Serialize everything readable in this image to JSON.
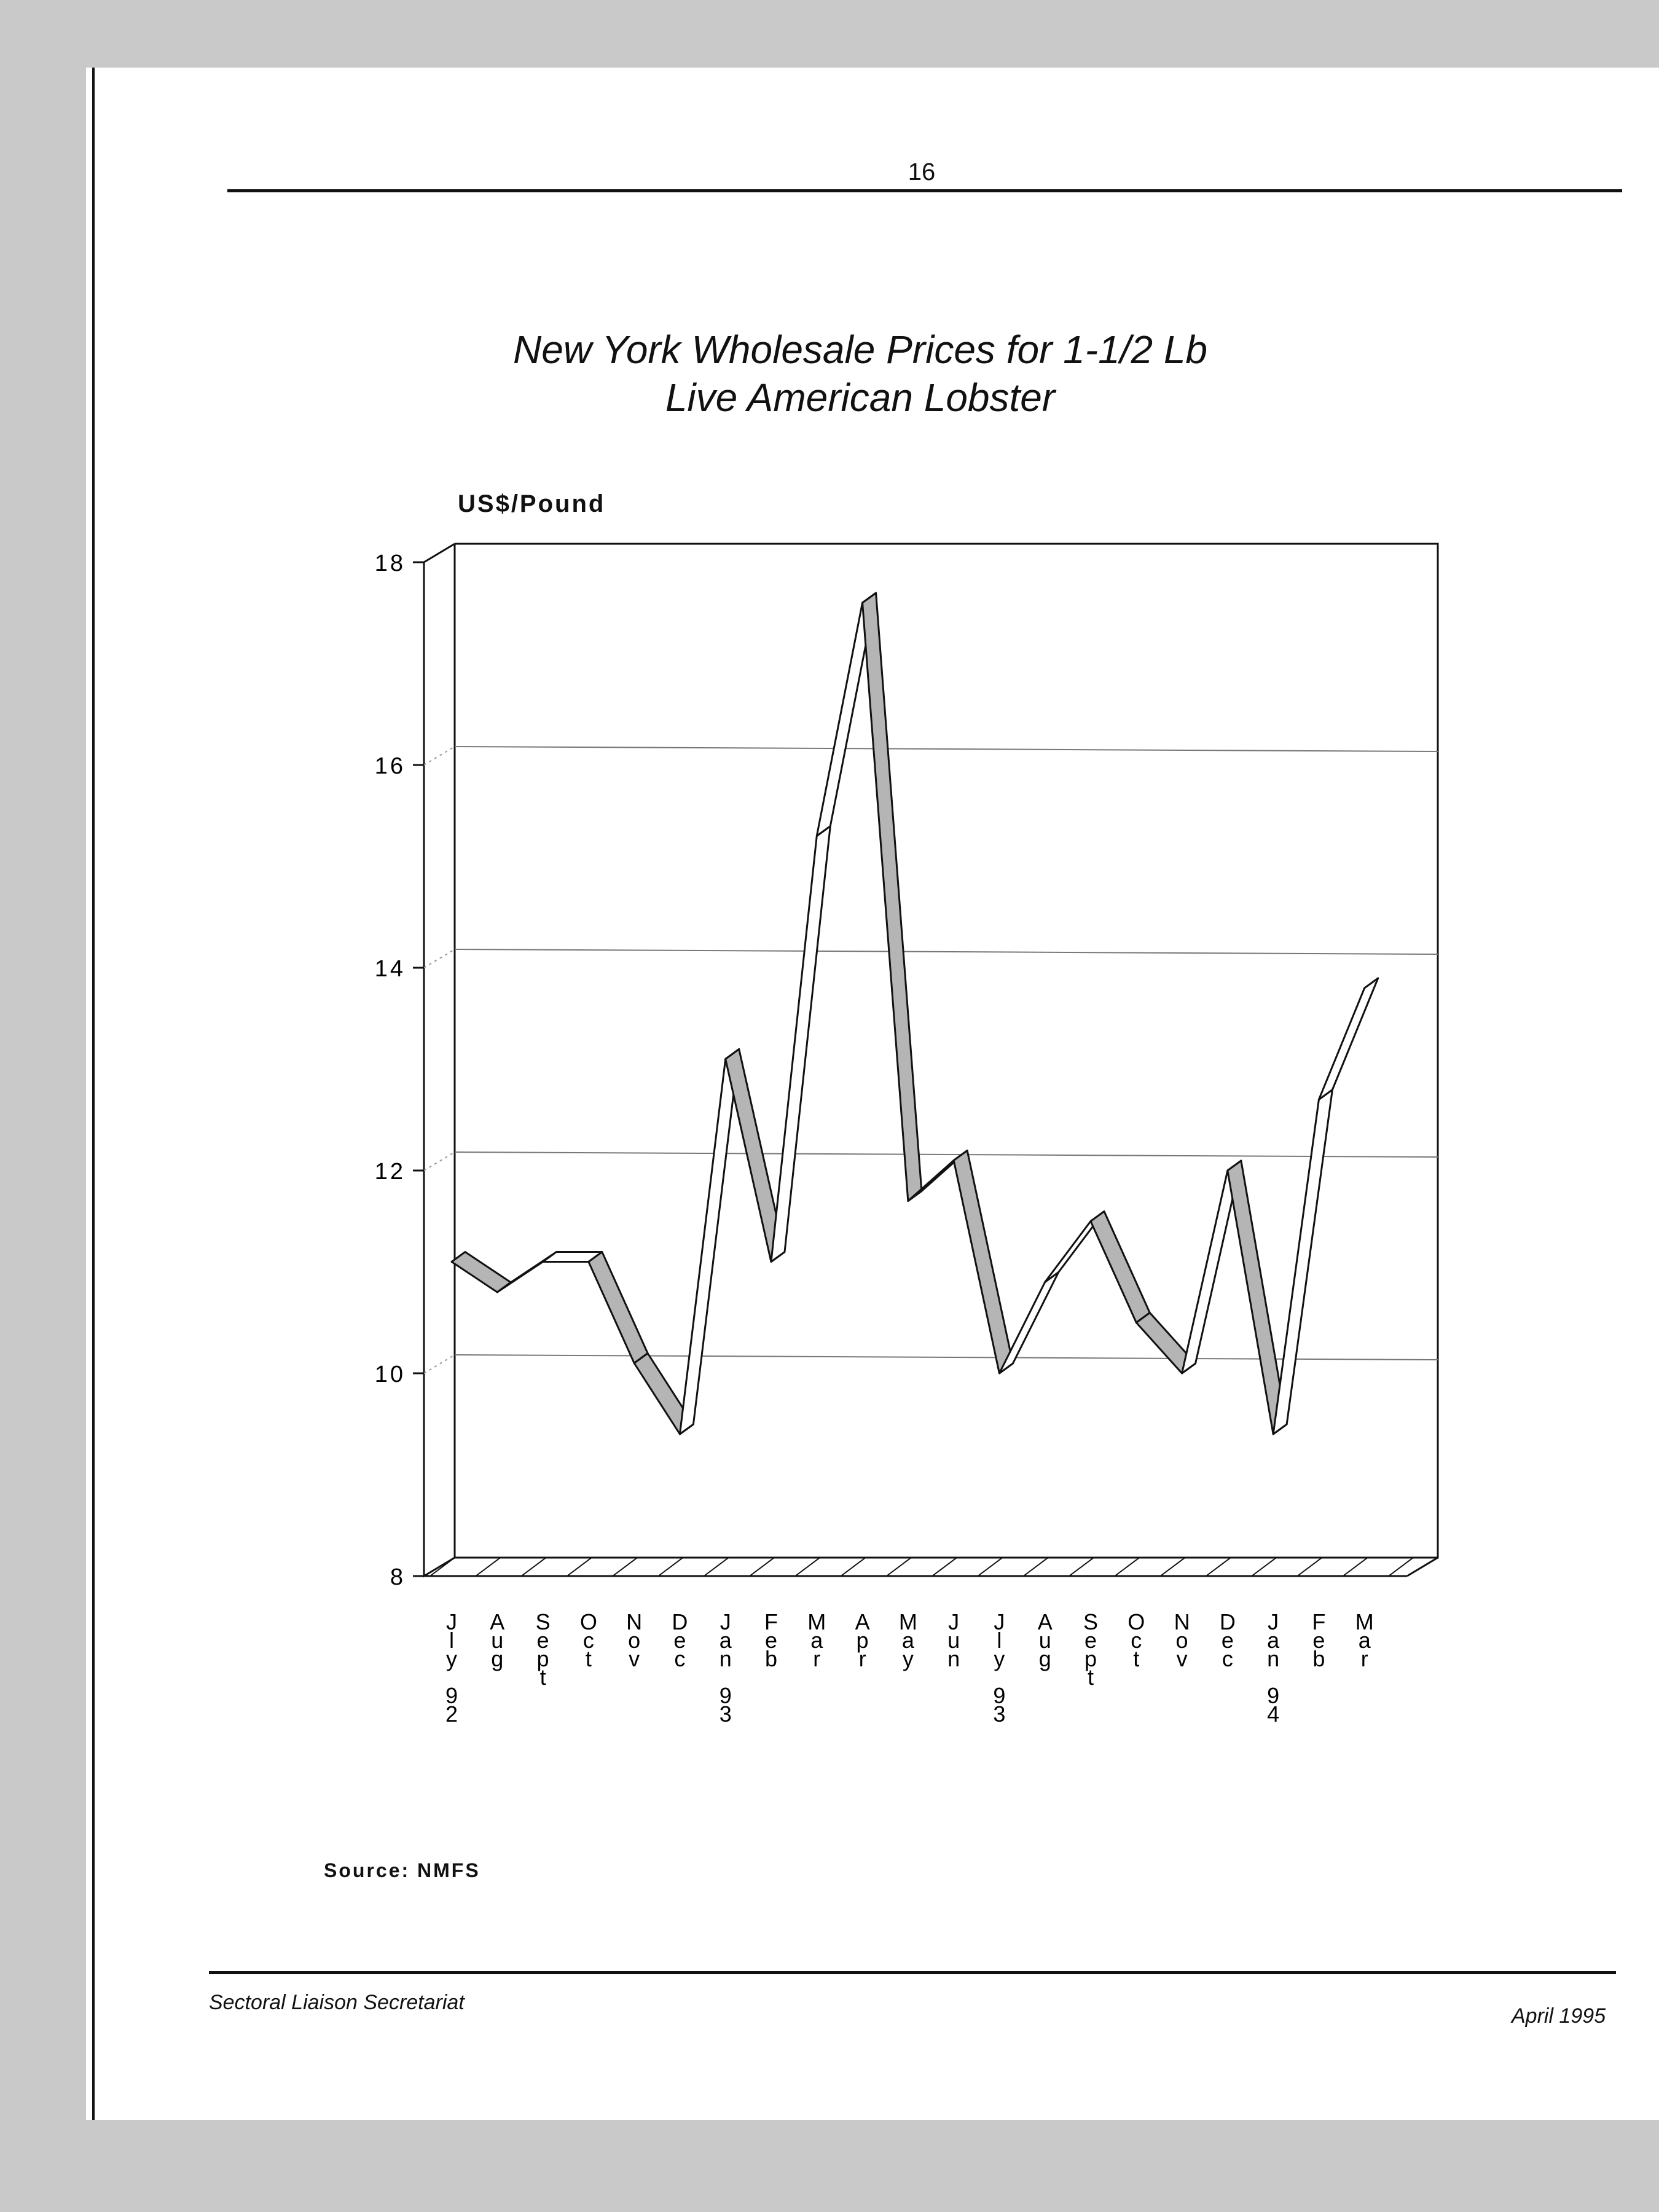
{
  "page": {
    "number": "16",
    "footer_left": "Sectoral Liaison Secretariat",
    "footer_right": "April 1995",
    "source": "Source: NMFS"
  },
  "chart_data": {
    "type": "line",
    "title_lines": [
      "New York Wholesale Prices for 1-1/2 Lb",
      "Live American Lobster"
    ],
    "ylabel": "US$/Pound",
    "ylim": [
      8,
      18
    ],
    "yticks": [
      8,
      10,
      12,
      14,
      16,
      18
    ],
    "grid": true,
    "categories": [
      [
        "J",
        "l",
        "y",
        "",
        "9",
        "2"
      ],
      [
        "A",
        "u",
        "g"
      ],
      [
        "S",
        "e",
        "p",
        "t"
      ],
      [
        "O",
        "c",
        "t"
      ],
      [
        "N",
        "o",
        "v"
      ],
      [
        "D",
        "e",
        "c"
      ],
      [
        "J",
        "a",
        "n",
        "",
        "9",
        "3"
      ],
      [
        "F",
        "e",
        "b"
      ],
      [
        "M",
        "a",
        "r"
      ],
      [
        "A",
        "p",
        "r"
      ],
      [
        "M",
        "a",
        "y"
      ],
      [
        "J",
        "u",
        "n"
      ],
      [
        "J",
        "l",
        "y",
        "",
        "9",
        "3"
      ],
      [
        "A",
        "u",
        "g"
      ],
      [
        "S",
        "e",
        "p",
        "t"
      ],
      [
        "O",
        "c",
        "t"
      ],
      [
        "N",
        "o",
        "v"
      ],
      [
        "D",
        "e",
        "c"
      ],
      [
        "J",
        "a",
        "n",
        "",
        "9",
        "4"
      ],
      [
        "F",
        "e",
        "b"
      ],
      [
        "M",
        "a",
        "r"
      ]
    ],
    "series": [
      {
        "values": [
          11.1,
          10.8,
          11.1,
          11.1,
          10.1,
          9.4,
          13.1,
          11.1,
          15.3,
          17.6,
          11.7,
          12.1,
          10.0,
          10.9,
          11.5,
          10.5,
          10.0,
          12.0,
          9.4,
          12.7,
          13.8
        ]
      }
    ]
  }
}
